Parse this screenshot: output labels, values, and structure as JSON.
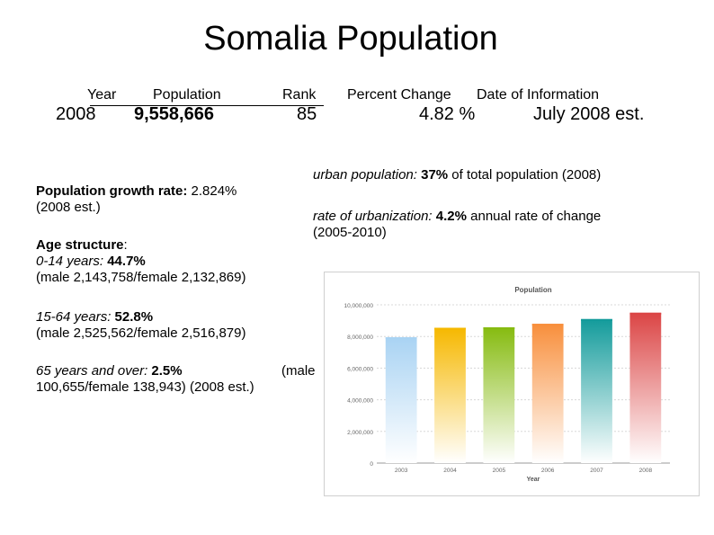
{
  "title": "Somalia Population",
  "table": {
    "headers": {
      "year": "Year",
      "population": "Population",
      "rank": "Rank",
      "percent_change": "Percent Change",
      "date": "Date of Information"
    },
    "values": {
      "year": "2008",
      "population": "9,558,666",
      "rank": "85",
      "percent_change": "4.82 %",
      "date": "July 2008 est."
    }
  },
  "left": {
    "growth_label": "Population growth rate: ",
    "growth_value": "2.824%",
    "growth_note": "(2008 est.)",
    "age_label": "Age structure",
    "age_colon": ":",
    "g1_label": "0-14 years: ",
    "g1_value": "44.7%",
    "g1_detail": "(male 2,143,758/female 2,132,869)",
    "g2_label": "15-64 years: ",
    "g2_value": "52.8%",
    "g2_detail": "(male 2,525,562/female 2,516,879)",
    "g3_label": "65 years and over: ",
    "g3_value": "2.5%",
    "g3_male": "(male",
    "g3_detail": "100,655/female 138,943) (2008 est.)"
  },
  "right": {
    "urban_label": "urban population: ",
    "urban_value": "37%",
    "urban_rest": " of total population (2008)",
    "rate_label": "rate of urbanization: ",
    "rate_value": "4.2%",
    "rate_rest": " annual rate of change",
    "rate_years": "(2005-2010)"
  },
  "chart_data": {
    "type": "bar",
    "title": "Population",
    "xlabel": "Year",
    "ylabel": "",
    "categories": [
      "2003",
      "2004",
      "2005",
      "2006",
      "2007",
      "2008"
    ],
    "values": [
      7950000,
      8550000,
      8580000,
      8800000,
      9100000,
      9500000
    ],
    "ylim": [
      0,
      10000000
    ],
    "yticks": [
      0,
      2000000,
      4000000,
      6000000,
      8000000,
      10000000
    ],
    "ytick_labels": [
      "0",
      "2,000,000",
      "4,000,000",
      "6,000,000",
      "8,000,000",
      "10,000,000"
    ],
    "colors": [
      "#a9d3f3",
      "#f6b800",
      "#86bb10",
      "#f88f3c",
      "#139b9b",
      "#db4545"
    ],
    "grid": true
  }
}
